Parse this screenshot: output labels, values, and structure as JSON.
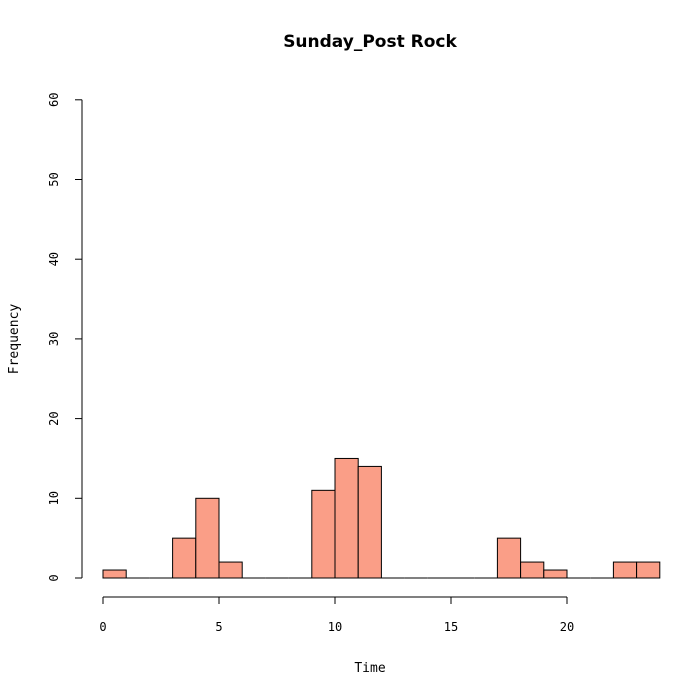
{
  "chart_data": {
    "type": "bar",
    "title": "Sunday_Post Rock",
    "xlabel": "Time",
    "ylabel": "Frequency",
    "xlim": [
      0,
      24
    ],
    "ylim": [
      0,
      60
    ],
    "x_ticks": [
      0,
      5,
      10,
      15,
      20
    ],
    "y_ticks": [
      0,
      10,
      20,
      30,
      40,
      50,
      60
    ],
    "bar_color": "#FA9E87",
    "bins": [
      {
        "start": 0,
        "end": 1,
        "count": 1
      },
      {
        "start": 1,
        "end": 2,
        "count": 0
      },
      {
        "start": 2,
        "end": 3,
        "count": 0
      },
      {
        "start": 3,
        "end": 4,
        "count": 5
      },
      {
        "start": 4,
        "end": 5,
        "count": 10
      },
      {
        "start": 5,
        "end": 6,
        "count": 2
      },
      {
        "start": 6,
        "end": 7,
        "count": 0
      },
      {
        "start": 7,
        "end": 8,
        "count": 0
      },
      {
        "start": 8,
        "end": 9,
        "count": 0
      },
      {
        "start": 9,
        "end": 10,
        "count": 11
      },
      {
        "start": 10,
        "end": 11,
        "count": 15
      },
      {
        "start": 11,
        "end": 12,
        "count": 14
      },
      {
        "start": 12,
        "end": 13,
        "count": 0
      },
      {
        "start": 13,
        "end": 14,
        "count": 0
      },
      {
        "start": 14,
        "end": 15,
        "count": 0
      },
      {
        "start": 15,
        "end": 16,
        "count": 0
      },
      {
        "start": 16,
        "end": 17,
        "count": 0
      },
      {
        "start": 17,
        "end": 18,
        "count": 5
      },
      {
        "start": 18,
        "end": 19,
        "count": 2
      },
      {
        "start": 19,
        "end": 20,
        "count": 1
      },
      {
        "start": 20,
        "end": 21,
        "count": 0
      },
      {
        "start": 21,
        "end": 22,
        "count": 0
      },
      {
        "start": 22,
        "end": 23,
        "count": 2
      },
      {
        "start": 23,
        "end": 24,
        "count": 2
      }
    ]
  }
}
